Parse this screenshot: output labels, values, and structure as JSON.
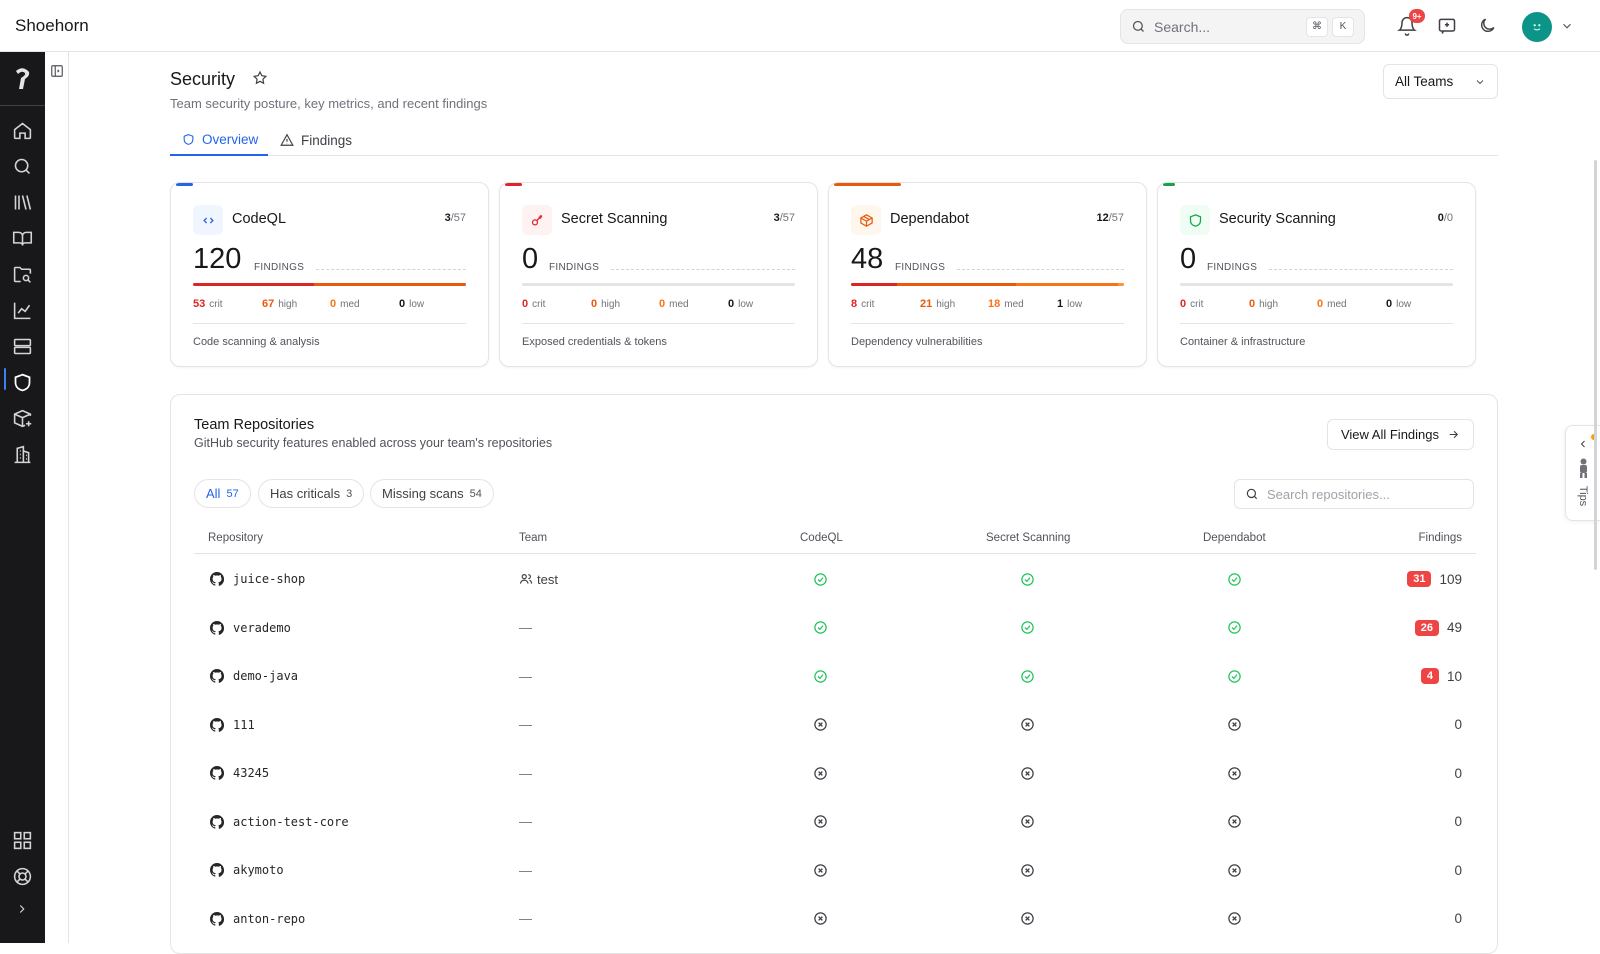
{
  "app": {
    "name": "Shoehorn"
  },
  "topbar": {
    "search_placeholder": "Search...",
    "shortcut_keys": [
      "⌘",
      "K"
    ],
    "notification_count": "9+",
    "icons": [
      "search-icon",
      "bell-icon",
      "feedback-icon",
      "moon-icon",
      "chevron-down-icon"
    ]
  },
  "sidebar": {
    "items": [
      "home-icon",
      "search-icon",
      "library-icon",
      "docs-icon",
      "folder-search-icon",
      "chart-icon",
      "server-icon",
      "shield-icon",
      "package-plus-icon",
      "building-icon"
    ],
    "active_index": 7,
    "bottom": [
      "grid-icon",
      "help-icon",
      "chevron-right-icon"
    ]
  },
  "header": {
    "title": "Security",
    "subtitle": "Team security posture, key metrics, and recent findings",
    "team_filter": "All Teams"
  },
  "tabs": [
    {
      "label": "Overview",
      "icon": "shield-icon",
      "active": true
    },
    {
      "label": "Findings",
      "icon": "alert-triangle-icon",
      "active": false
    }
  ],
  "cards": [
    {
      "title": "CodeQL",
      "enabled": "3",
      "total": "/57",
      "findings": "120",
      "findings_label": "FINDINGS",
      "crit": "53",
      "high": "67",
      "med": "0",
      "low": "0",
      "crit_label": "crit",
      "high_label": "high",
      "med_label": "med",
      "low_label": "low",
      "description": "Code scanning & analysis",
      "icon": "code-icon",
      "color": "#2563eb",
      "bg": "#eff6ff"
    },
    {
      "title": "Secret Scanning",
      "enabled": "3",
      "total": "/57",
      "findings": "0",
      "findings_label": "FINDINGS",
      "crit": "0",
      "high": "0",
      "med": "0",
      "low": "0",
      "crit_label": "crit",
      "high_label": "high",
      "med_label": "med",
      "low_label": "low",
      "description": "Exposed credentials & tokens",
      "icon": "key-icon",
      "color": "#dc2626",
      "bg": "#fef2f2"
    },
    {
      "title": "Dependabot",
      "enabled": "12",
      "total": "/57",
      "findings": "48",
      "findings_label": "FINDINGS",
      "crit": "8",
      "high": "21",
      "med": "18",
      "low": "1",
      "crit_label": "crit",
      "high_label": "high",
      "med_label": "med",
      "low_label": "low",
      "description": "Dependency vulnerabilities",
      "icon": "package-icon",
      "color": "#ea580c",
      "bg": "#fff7ed"
    },
    {
      "title": "Security Scanning",
      "enabled": "0",
      "total": "/0",
      "findings": "0",
      "findings_label": "FINDINGS",
      "crit": "0",
      "high": "0",
      "med": "0",
      "low": "0",
      "crit_label": "crit",
      "high_label": "high",
      "med_label": "med",
      "low_label": "low",
      "description": "Container & infrastructure",
      "icon": "shield-icon",
      "color": "#16a34a",
      "bg": "#f0fdf4"
    }
  ],
  "repos": {
    "title": "Team Repositories",
    "subtitle": "GitHub security features enabled across your team's repositories",
    "view_all": "View All Findings",
    "filters": [
      {
        "label": "All",
        "count": "57",
        "active": true
      },
      {
        "label": "Has criticals",
        "count": "3",
        "active": false
      },
      {
        "label": "Missing scans",
        "count": "54",
        "active": false
      }
    ],
    "search_placeholder": "Search repositories...",
    "columns": [
      "Repository",
      "Team",
      "CodeQL",
      "Secret Scanning",
      "Dependabot",
      "Findings"
    ],
    "rows": [
      {
        "name": "juice-shop",
        "team": "test",
        "codeql": true,
        "secret": true,
        "dependabot": true,
        "crit": "31",
        "findings": "109"
      },
      {
        "name": "verademo",
        "team": "—",
        "codeql": true,
        "secret": true,
        "dependabot": true,
        "crit": "26",
        "findings": "49"
      },
      {
        "name": "demo-java",
        "team": "—",
        "codeql": true,
        "secret": true,
        "dependabot": true,
        "crit": "4",
        "findings": "10"
      },
      {
        "name": "111",
        "team": "—",
        "codeql": false,
        "secret": false,
        "dependabot": false,
        "crit": "",
        "findings": "0"
      },
      {
        "name": "43245",
        "team": "—",
        "codeql": false,
        "secret": false,
        "dependabot": false,
        "crit": "",
        "findings": "0"
      },
      {
        "name": "action-test-core",
        "team": "—",
        "codeql": false,
        "secret": false,
        "dependabot": false,
        "crit": "",
        "findings": "0"
      },
      {
        "name": "akymoto",
        "team": "—",
        "codeql": false,
        "secret": false,
        "dependabot": false,
        "crit": "",
        "findings": "0"
      },
      {
        "name": "anton-repo",
        "team": "—",
        "codeql": false,
        "secret": false,
        "dependabot": false,
        "crit": "",
        "findings": "0"
      }
    ]
  },
  "tips": {
    "label": "Tips"
  }
}
